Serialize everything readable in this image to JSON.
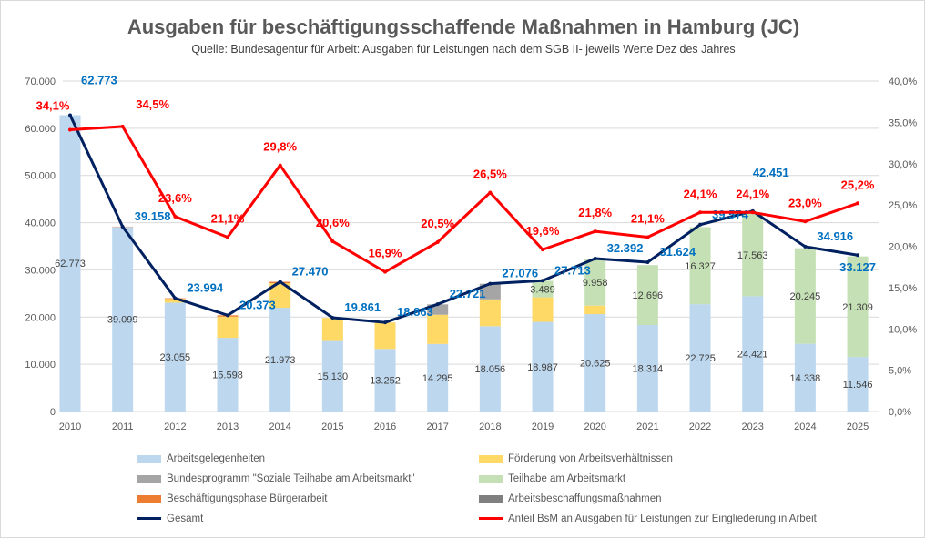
{
  "chart_data": {
    "type": "bar+line",
    "title": "Ausgaben für beschäftigungsschaffende Maßnahmen in Hamburg (JC)",
    "subtitle": "Quelle: Bundesagentur für Arbeit: Ausgaben für Leistungen nach dem SGB II- jeweils Werte Dez des Jahres",
    "categories": [
      "2010",
      "2011",
      "2012",
      "2013",
      "2014",
      "2015",
      "2016",
      "2017",
      "2018",
      "2019",
      "2020",
      "2021",
      "2022",
      "2023",
      "2024",
      "2025"
    ],
    "y_left": {
      "min": 0,
      "max": 70000,
      "step": 10000,
      "ticks": [
        "0",
        "10.000",
        "20.000",
        "30.000",
        "40.000",
        "50.000",
        "60.000",
        "70.000"
      ]
    },
    "y_right": {
      "min": 0,
      "max": 40,
      "step": 5,
      "ticks": [
        "0,0%",
        "5,0%",
        "10,0%",
        "15,0%",
        "20,0%",
        "25,0%",
        "30,0%",
        "35,0%",
        "40,0%"
      ]
    },
    "grid": true,
    "legend_position": "bottom",
    "bar_series": [
      {
        "name": "Arbeitsgelegenheiten",
        "color": "#BDD7EE",
        "labeled": true,
        "values": [
          62773,
          39099,
          23055,
          15598,
          21973,
          15130,
          13252,
          14295,
          18056,
          18987,
          20625,
          18314,
          22725,
          24421,
          14338,
          11546
        ],
        "labels": [
          "62.773",
          "39.099",
          "23.055",
          "15.598",
          "21.973",
          "15.130",
          "13.252",
          "14.295",
          "18.056",
          "18.987",
          "20.625",
          "18.314",
          "22.725",
          "24.421",
          "14.338",
          "11.546"
        ]
      },
      {
        "name": "Förderung von Arbeitsverhältnissen",
        "color": "#FFD966",
        "labeled": false,
        "values": [
          0,
          0,
          800,
          4500,
          5200,
          4700,
          5600,
          6200,
          5700,
          5200,
          1800,
          0,
          0,
          0,
          0,
          0
        ]
      },
      {
        "name": "Bundesprogramm \"Soziale Teilhabe am Arbeitsmarkt\"",
        "color": "#A5A5A5",
        "labeled": false,
        "values": [
          0,
          0,
          0,
          0,
          0,
          0,
          0,
          2200,
          3300,
          0,
          0,
          0,
          0,
          0,
          0,
          0
        ]
      },
      {
        "name": "Teilhabe am Arbeitsmarkt",
        "color": "#C5E0B4",
        "labeled": true,
        "values": [
          0,
          0,
          0,
          0,
          0,
          0,
          0,
          0,
          0,
          3489,
          9958,
          12696,
          16327,
          17563,
          20245,
          21309
        ],
        "labels": [
          "",
          "",
          "",
          "",
          "",
          "",
          "",
          "",
          "",
          "3.489",
          "9.958",
          "12.696",
          "16.327",
          "17.563",
          "20.245",
          "21.309"
        ]
      },
      {
        "name": "Beschäftigungsphase Bürgerarbeit",
        "color": "#ED7D31",
        "labeled": false,
        "values": [
          0,
          59,
          140,
          275,
          300,
          0,
          0,
          0,
          0,
          0,
          0,
          0,
          0,
          0,
          0,
          0
        ]
      },
      {
        "name": "Arbeitsbeschaffungsmaßnahmen",
        "color": "#7F7F7F",
        "labeled": false,
        "values": [
          0,
          0,
          0,
          0,
          0,
          0,
          0,
          0,
          0,
          0,
          0,
          0,
          0,
          0,
          0,
          0
        ]
      }
    ],
    "line_series": [
      {
        "name": "Gesamt",
        "color": "#002060",
        "label_color": "#0070C0",
        "axis": "left",
        "values": [
          62773,
          39158,
          23994,
          20373,
          27470,
          19861,
          18863,
          22721,
          27076,
          27713,
          32392,
          31624,
          39574,
          42451,
          34916,
          33127
        ],
        "labels": [
          "62.773",
          "39.158",
          "23.994",
          "20.373",
          "27.470",
          "19.861",
          "18.863",
          "22.721",
          "27.076",
          "27.713",
          "32.392",
          "31.624",
          "39.574",
          "42.451",
          "34.916",
          "33.127"
        ]
      },
      {
        "name": "Anteil BsM an Ausgaben für Leistungen zur Eingliederung in Arbeit",
        "color": "#FF0000",
        "label_color": "#FF0000",
        "axis": "right",
        "values": [
          34.1,
          34.5,
          23.6,
          21.1,
          29.8,
          20.6,
          16.9,
          20.5,
          26.5,
          19.6,
          21.8,
          21.1,
          24.1,
          24.1,
          23.0,
          25.2
        ],
        "labels": [
          "34,1%",
          "34,5%",
          "23,6%",
          "21,1%",
          "29,8%",
          "20,6%",
          "16,9%",
          "20,5%",
          "26,5%",
          "19,6%",
          "21,8%",
          "21,1%",
          "24,1%",
          "24,1%",
          "23,0%",
          "25,2%"
        ]
      }
    ]
  }
}
